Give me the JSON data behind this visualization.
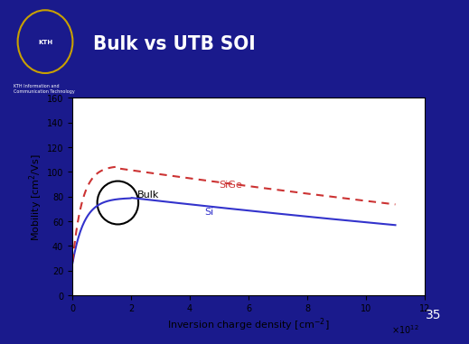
{
  "title": "Bulk vs UTB SOI",
  "title_color": "#FFFFFF",
  "header_bg": "#0000CC",
  "slide_bg": "#1a1a8c",
  "plot_bg": "#FFFFFF",
  "xlabel": "Inversion charge density [cm$^{-2}$]",
  "ylabel": "Mobility [cm$^2$/Vs]",
  "xlim": [
    0,
    12
  ],
  "ylim": [
    0,
    160
  ],
  "xticks": [
    0,
    2,
    4,
    6,
    8,
    10,
    12
  ],
  "yticks": [
    0,
    20,
    40,
    60,
    80,
    100,
    120,
    140,
    160
  ],
  "x_scale_label": "$\\times10^{12}$",
  "si_color": "#3333cc",
  "sige_color": "#cc3333",
  "label_si": "Si",
  "label_sige": "SiGe",
  "label_bulk": "Bulk",
  "page_number": "35"
}
